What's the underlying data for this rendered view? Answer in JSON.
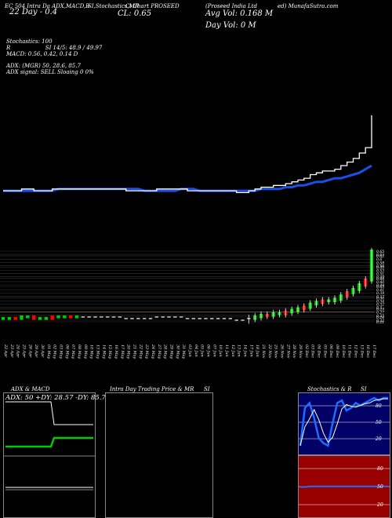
{
  "header": {
    "left_top": "EC 504 Intra Da ADX,MACD,B",
    "left_mid": "SI,Stochastics,MR",
    "center_top": "Cl Chart PROSEED",
    "right_top": "(Proseed India Ltd",
    "right_tail": "ed) MunafaSutra.com",
    "date_line": "22 Day - 0.4",
    "close_line": "CL: 0.65",
    "avg_vol": "Avg Vol: 0.168  M",
    "day_vol": "Day Vol: 0  M"
  },
  "indicators": {
    "stochastics": "Stochastics: 100",
    "rsi_line": "R                    SI 14/5: 48.9 / 49.97",
    "macd_line": "MACD: 0.56,  0.42,  0.14  D",
    "adx_line": "ADX:                  (MGR) 50,  28.6,  85.7",
    "adx_signal": "ADX  signal: SELL  Sloaing 0 0%"
  },
  "panels": {
    "adx_title": "ADX  & MACD",
    "adx_values": "ADX: 50  +DY: 28.57  -DY: 85.71",
    "intra_title": "Intra  Day Trading Price  & MR",
    "intra_si": "SI",
    "stoch_title": "Stochastics & R",
    "stoch_si": "SI",
    "stoch_levels": [
      "80",
      "50",
      "20"
    ],
    "rsi_levels": [
      "80",
      "50",
      "20"
    ]
  },
  "colors": {
    "up": "#00cc00",
    "down": "#ff0000",
    "ma": "#1a4fe8",
    "price_line": "#ffffff",
    "grid": "#555555",
    "stoch_bg": "#000066",
    "rsi_bg": "#990000"
  },
  "chart_data": {
    "type": "line",
    "title": "",
    "x": [
      "22 Apr",
      "23 Apr",
      "24 Apr",
      "25 Apr",
      "26 Apr",
      "29 Apr",
      "30 Apr",
      "01 May",
      "02 May",
      "03 May",
      "06 May",
      "07 May",
      "08 May",
      "09 May",
      "10 May",
      "13 May",
      "14 May",
      "15 May",
      "16 May",
      "17 May",
      "20 May",
      "21 May",
      "22 May",
      "23 May",
      "24 May",
      "27 May",
      "28 May",
      "29 May",
      "30 May",
      "31 May",
      "03 Jun",
      "04 Jun",
      "05 Jun",
      "06 Jun",
      "07 Jun",
      "10 Jun",
      "11 Jun",
      "12 Jun",
      "13 Jun",
      "14 Jun",
      "17 Jun",
      "18 Jun",
      "21 Nov",
      "22 Nov",
      "25 Nov",
      "26 Nov",
      "27 Nov",
      "28 Nov",
      "29 Nov",
      "02 Dec",
      "03 Dec",
      "04 Dec",
      "05 Dec",
      "06 Dec",
      "09 Dec",
      "10 Dec",
      "11 Dec",
      "12 Dec",
      "13 Dec",
      "16 Dec",
      "17 Dec"
    ],
    "price_axis_labels": [
      "0.65",
      "0.63",
      "0.62",
      "0.6",
      "0.58",
      "0.56",
      "0.55",
      "0.53",
      "0.51",
      "0.49",
      "0.48",
      "0.46",
      "0.44",
      "0.43",
      "0.41",
      "0.39",
      "0.37",
      "0.36",
      "0.34",
      "0.32",
      "0.3",
      "0.29",
      "0.27",
      "0.25",
      "0.24",
      "0.22",
      "0.21"
    ],
    "close": [
      0.23,
      0.23,
      0.23,
      0.24,
      0.24,
      0.23,
      0.23,
      0.23,
      0.24,
      0.24,
      0.24,
      0.24,
      0.24,
      0.24,
      0.24,
      0.24,
      0.24,
      0.24,
      0.24,
      0.24,
      0.23,
      0.23,
      0.23,
      0.23,
      0.23,
      0.24,
      0.24,
      0.24,
      0.24,
      0.24,
      0.23,
      0.23,
      0.23,
      0.23,
      0.23,
      0.23,
      0.23,
      0.23,
      0.22,
      0.22,
      0.23,
      0.24,
      0.25,
      0.25,
      0.26,
      0.26,
      0.27,
      0.28,
      0.29,
      0.3,
      0.32,
      0.33,
      0.34,
      0.34,
      0.35,
      0.37,
      0.39,
      0.41,
      0.44,
      0.47,
      0.65
    ],
    "ma": [
      0.23,
      0.23,
      0.23,
      0.23,
      0.23,
      0.23,
      0.23,
      0.23,
      0.23,
      0.24,
      0.24,
      0.24,
      0.24,
      0.24,
      0.24,
      0.24,
      0.24,
      0.24,
      0.24,
      0.24,
      0.24,
      0.24,
      0.24,
      0.23,
      0.23,
      0.23,
      0.23,
      0.23,
      0.23,
      0.24,
      0.24,
      0.24,
      0.23,
      0.23,
      0.23,
      0.23,
      0.23,
      0.23,
      0.23,
      0.23,
      0.23,
      0.23,
      0.24,
      0.24,
      0.24,
      0.24,
      0.25,
      0.25,
      0.26,
      0.26,
      0.27,
      0.28,
      0.28,
      0.29,
      0.3,
      0.3,
      0.31,
      0.32,
      0.33,
      0.35,
      0.37
    ],
    "candle_up": [
      true,
      true,
      false,
      true,
      true,
      false,
      true,
      true,
      false,
      true,
      true,
      false,
      true,
      true,
      false,
      true,
      false,
      true,
      false,
      true,
      false,
      true,
      false,
      true,
      false,
      true,
      false,
      false,
      true,
      false,
      false,
      true,
      false,
      false,
      true,
      false,
      false,
      false,
      true,
      false,
      false,
      true,
      true,
      false,
      true,
      true,
      false,
      true,
      true,
      false,
      true,
      true,
      false,
      true,
      true,
      true,
      false,
      true,
      true,
      false,
      true
    ],
    "stochastic": [
      5,
      80,
      90,
      60,
      20,
      10,
      5,
      50,
      90,
      95,
      75,
      80,
      90,
      85,
      90,
      95,
      100,
      95,
      100,
      100
    ],
    "rsi": [
      48,
      48,
      49,
      49,
      49,
      49,
      49,
      49,
      49,
      49,
      49,
      49,
      49,
      49,
      49,
      49,
      49,
      49,
      49,
      49
    ]
  }
}
